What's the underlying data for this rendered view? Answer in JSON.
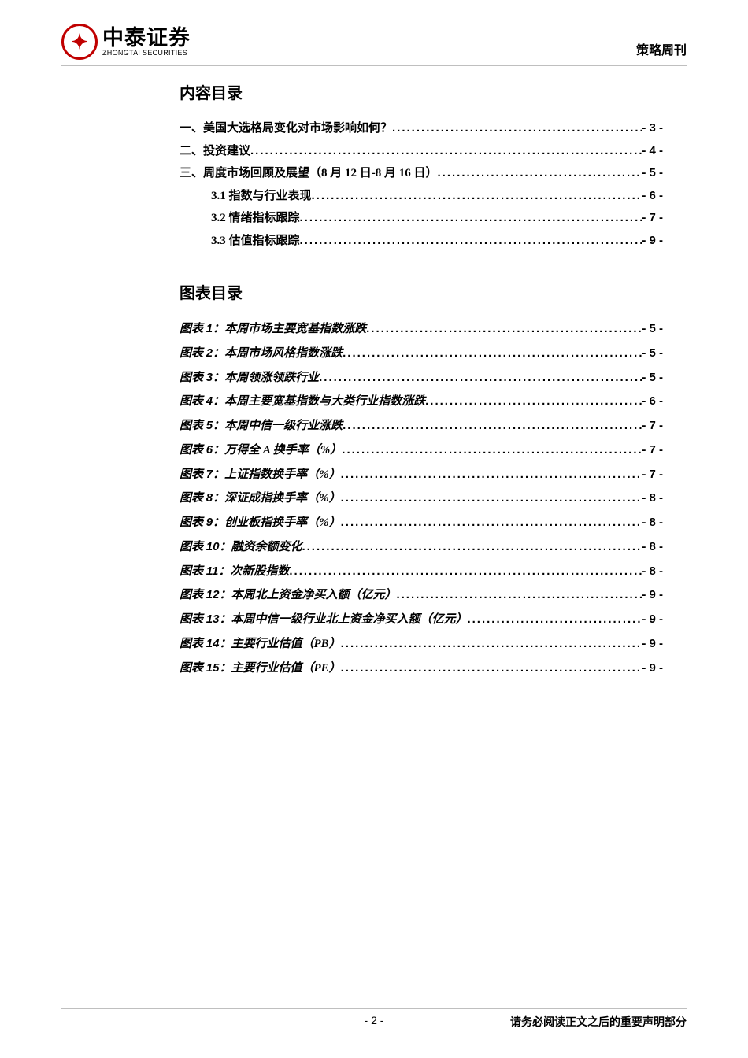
{
  "header": {
    "logo_cn": "中泰证券",
    "logo_en": "ZHONGTAI SECURITIES",
    "right_label": "策略周刊"
  },
  "toc": {
    "title": "内容目录",
    "items": [
      {
        "label": "一、美国大选格局变化对市场影响如何？",
        "page": "- 3 -",
        "sub": false
      },
      {
        "label": "二、投资建议",
        "page": "- 4 -",
        "sub": false
      },
      {
        "label": "三、周度市场回顾及展望（8 月 12 日-8 月 16 日）",
        "page": "- 5 -",
        "sub": false
      },
      {
        "label": "3.1 指数与行业表现",
        "page": "- 6 -",
        "sub": true
      },
      {
        "label": "3.2 情绪指标跟踪",
        "page": "- 7 -",
        "sub": true
      },
      {
        "label": "3.3 估值指标跟踪",
        "page": "- 9 -",
        "sub": true
      }
    ]
  },
  "figures": {
    "title": "图表目录",
    "items": [
      {
        "num": "1",
        "label": "本周市场主要宽基指数涨跌",
        "page": "- 5 -"
      },
      {
        "num": "2",
        "label": "本周市场风格指数涨跌",
        "page": "- 5 -"
      },
      {
        "num": "3",
        "label": "本周领涨领跌行业",
        "page": "- 5 -"
      },
      {
        "num": "4",
        "label": "本周主要宽基指数与大类行业指数涨跌",
        "page": "- 6 -"
      },
      {
        "num": "5",
        "label": "本周中信一级行业涨跌",
        "page": "- 7 -"
      },
      {
        "num": "6",
        "label": "万得全 A 换手率（%）",
        "page": "- 7 -"
      },
      {
        "num": "7",
        "label": "上证指数换手率（%）",
        "page": "- 7 -"
      },
      {
        "num": "8",
        "label": "深证成指换手率（%）",
        "page": "- 8 -"
      },
      {
        "num": "9",
        "label": "创业板指换手率（%）",
        "page": "- 8 -"
      },
      {
        "num": "10",
        "label": "融资余额变化",
        "page": "- 8 -"
      },
      {
        "num": "11",
        "label": "次新股指数",
        "page": "- 8 -"
      },
      {
        "num": "12",
        "label": "本周北上资金净买入额（亿元）",
        "page": "- 9 -"
      },
      {
        "num": "13",
        "label": "本周中信一级行业北上资金净买入额（亿元）",
        "page": "- 9 -"
      },
      {
        "num": "14",
        "label": "主要行业估值（PB）",
        "page": "- 9 -"
      },
      {
        "num": "15",
        "label": "主要行业估值（PE）",
        "page": "- 9 -"
      }
    ]
  },
  "footer": {
    "page_num": "- 2 -",
    "right_text": "请务必阅读正文之后的重要声明部分"
  }
}
